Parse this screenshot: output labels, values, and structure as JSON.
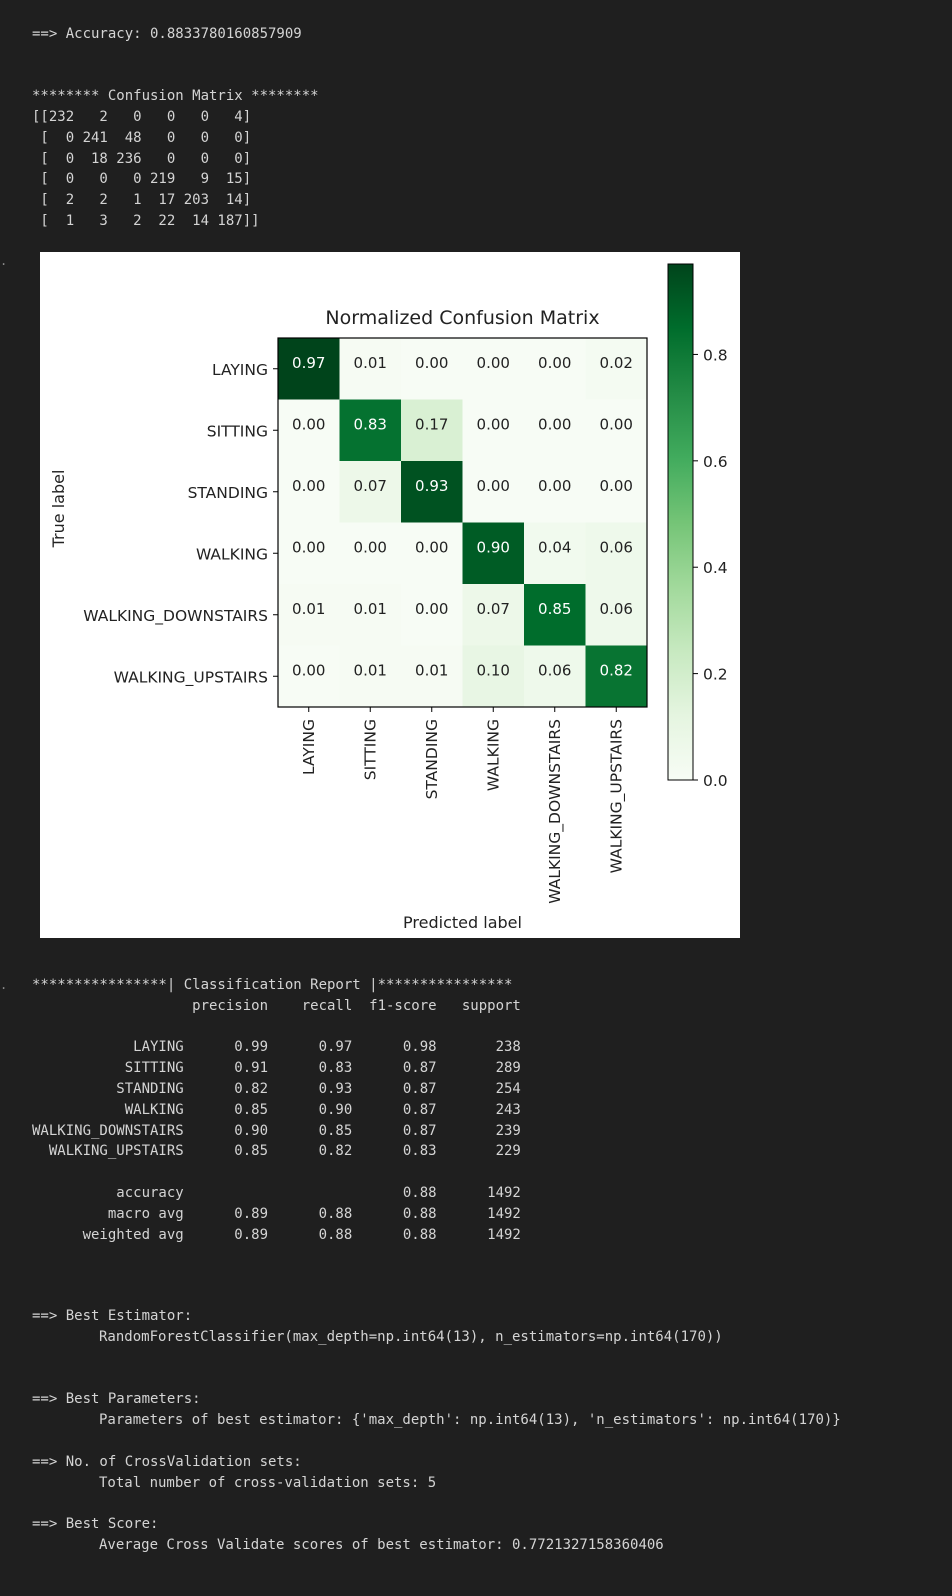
{
  "accuracy_line": "==> Accuracy: 0.8833780160857909",
  "confusion_matrix": {
    "header": "******** Confusion Matrix ********",
    "rows": [
      [
        232,
        2,
        0,
        0,
        0,
        4
      ],
      [
        0,
        241,
        48,
        0,
        0,
        0
      ],
      [
        0,
        18,
        236,
        0,
        0,
        0
      ],
      [
        0,
        0,
        0,
        219,
        9,
        15
      ],
      [
        2,
        2,
        1,
        17,
        203,
        14
      ],
      [
        1,
        3,
        2,
        22,
        14,
        187
      ]
    ]
  },
  "chart_data": {
    "type": "heatmap",
    "title": "Normalized Confusion Matrix",
    "xlabel": "Predicted label",
    "ylabel": "True label",
    "row_labels": [
      "LAYING",
      "SITTING",
      "STANDING",
      "WALKING",
      "WALKING_DOWNSTAIRS",
      "WALKING_UPSTAIRS"
    ],
    "col_labels": [
      "LAYING",
      "SITTING",
      "STANDING",
      "WALKING",
      "WALKING_DOWNSTAIRS",
      "WALKING_UPSTAIRS"
    ],
    "values": [
      [
        0.97,
        0.01,
        0.0,
        0.0,
        0.0,
        0.02
      ],
      [
        0.0,
        0.83,
        0.17,
        0.0,
        0.0,
        0.0
      ],
      [
        0.0,
        0.07,
        0.93,
        0.0,
        0.0,
        0.0
      ],
      [
        0.0,
        0.0,
        0.0,
        0.9,
        0.04,
        0.06
      ],
      [
        0.01,
        0.01,
        0.0,
        0.07,
        0.85,
        0.06
      ],
      [
        0.0,
        0.01,
        0.01,
        0.1,
        0.06,
        0.82
      ]
    ],
    "colormap": "Greens",
    "colorbar": {
      "range": [
        0,
        0.97
      ],
      "ticks": [
        0.0,
        0.2,
        0.4,
        0.6,
        0.8
      ],
      "tick_labels": [
        "0.0",
        "0.2",
        "0.4",
        "0.6",
        "0.8"
      ]
    }
  },
  "classification_report": {
    "header": "****************| Classification Report |****************",
    "columns": [
      "precision",
      "recall",
      "f1-score",
      "support"
    ],
    "rows": [
      [
        "LAYING",
        "0.99",
        "0.97",
        "0.98",
        "238"
      ],
      [
        "SITTING",
        "0.91",
        "0.83",
        "0.87",
        "289"
      ],
      [
        "STANDING",
        "0.82",
        "0.93",
        "0.87",
        "254"
      ],
      [
        "WALKING",
        "0.85",
        "0.90",
        "0.87",
        "243"
      ],
      [
        "WALKING_DOWNSTAIRS",
        "0.90",
        "0.85",
        "0.87",
        "239"
      ],
      [
        "WALKING_UPSTAIRS",
        "0.85",
        "0.82",
        "0.83",
        "229"
      ]
    ],
    "summary": [
      [
        "accuracy",
        "",
        "",
        "0.88",
        "1492"
      ],
      [
        "macro avg",
        "0.89",
        "0.88",
        "0.88",
        "1492"
      ],
      [
        "weighted avg",
        "0.89",
        "0.88",
        "0.88",
        "1492"
      ]
    ]
  },
  "best_estimator": {
    "label": "==> Best Estimator:",
    "value": "RandomForestClassifier(max_depth=np.int64(13), n_estimators=np.int64(170))"
  },
  "best_parameters": {
    "label": "==> Best Parameters:",
    "value": "Parameters of best estimator: {'max_depth': np.int64(13), 'n_estimators': np.int64(170)}"
  },
  "cv_sets": {
    "label": "==> No. of CrossValidation sets:",
    "value": "Total number of cross-validation sets: 5"
  },
  "best_score": {
    "label": "==> Best Score:",
    "value": "Average Cross Validate scores of best estimator: 0.7721327158360406"
  },
  "output_marker": "."
}
